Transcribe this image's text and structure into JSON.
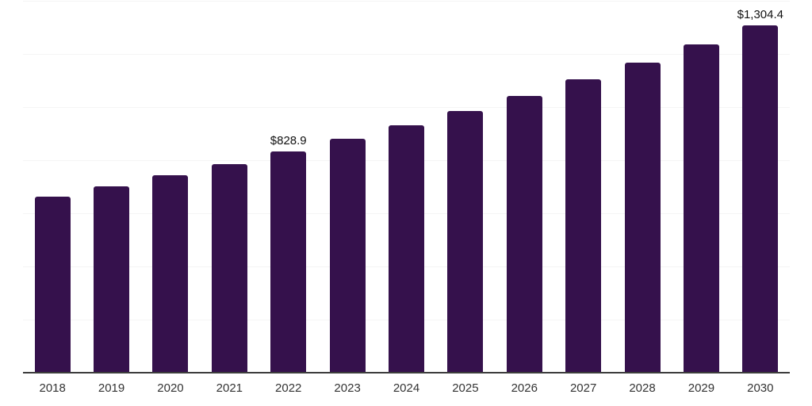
{
  "chart_data": {
    "type": "bar",
    "title": "",
    "xlabel": "",
    "ylabel": "",
    "categories": [
      "2018",
      "2019",
      "2020",
      "2021",
      "2022",
      "2023",
      "2024",
      "2025",
      "2026",
      "2027",
      "2028",
      "2029",
      "2030"
    ],
    "values": [
      660.8,
      699.3,
      740.1,
      783.2,
      828.9,
      877.2,
      928.4,
      982.5,
      1039.8,
      1100.4,
      1164.6,
      1232.5,
      1304.4
    ],
    "data_labels": [
      {
        "category": "2022",
        "text": "$828.9"
      },
      {
        "category": "2030",
        "text": "$1,304.4"
      }
    ],
    "ylim": [
      0,
      1400
    ],
    "gridline_step": 200,
    "grid": "horizontal-only",
    "y_tick_labels_visible": false,
    "legend_position": "none",
    "colors": {
      "bar": "#35114c",
      "gridline": "#f5f5f5",
      "axis": "#3c3c3c",
      "tick_label": "#333333",
      "data_label": "#111111",
      "background": "#ffffff"
    }
  }
}
